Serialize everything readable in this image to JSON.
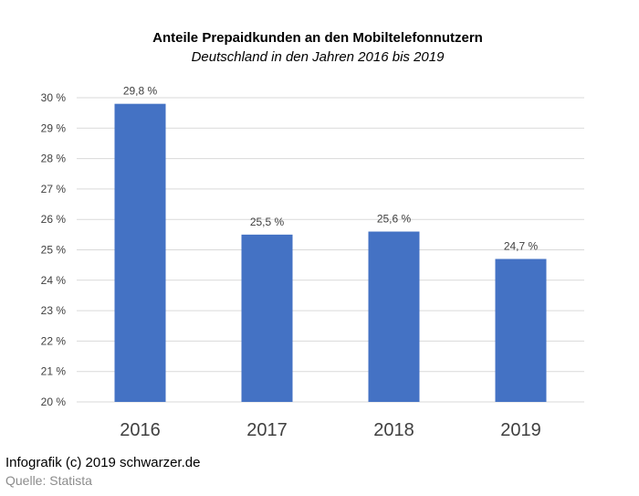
{
  "chart_data": {
    "type": "bar",
    "title": "Anteile Prepaidkunden an den Mobiltelefonnutzern",
    "subtitle": "Deutschland in den Jahren 2016 bis 2019",
    "categories": [
      "2016",
      "2017",
      "2018",
      "2019"
    ],
    "values": [
      29.8,
      25.5,
      25.6,
      24.7
    ],
    "data_labels": [
      "29,8 %",
      "25,5 %",
      "25,6 %",
      "24,7 %"
    ],
    "ylim": [
      20,
      30
    ],
    "yticks": [
      20,
      21,
      22,
      23,
      24,
      25,
      26,
      27,
      28,
      29,
      30
    ],
    "ytick_labels": [
      "20 %",
      "21 %",
      "22 %",
      "23 %",
      "24 %",
      "25 %",
      "26 %",
      "27 %",
      "28 %",
      "29 %",
      "30 %"
    ],
    "xlabel": "",
    "ylabel": "",
    "grid": true,
    "bar_color": "#4472c4"
  },
  "footer": {
    "credit": "Infografik (c) 2019 schwarzer.de",
    "source": "Quelle: Statista"
  }
}
